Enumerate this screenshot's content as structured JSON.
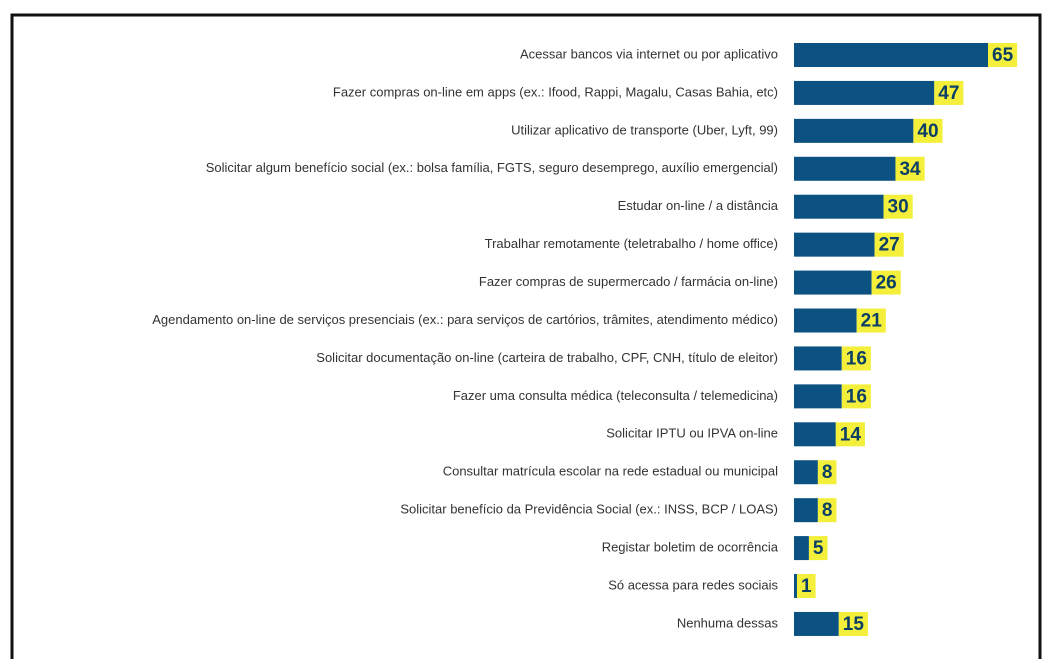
{
  "chart_data": {
    "type": "bar",
    "orientation": "horizontal",
    "color": "#0b5282",
    "categories": [
      "Acessar bancos via internet ou por aplicativo",
      "Fazer compras on-line em apps (ex.: Ifood, Rappi, Magalu, Casas Bahia, etc)",
      "Utilizar aplicativo de transporte (Uber, Lyft, 99)",
      "Solicitar algum benefício social (ex.: bolsa família, FGTS, seguro desemprego, auxílio emergencial)",
      "Estudar on-line / a distância",
      "Trabalhar remotamente (teletrabalho / home office)",
      "Fazer compras de supermercado / farmácia on-line)",
      "Agendamento on-line de serviços presenciais (ex.: para serviços de cartórios, trâmites, atendimento médico)",
      "Solicitar documentação on-line (carteira de trabalho, CPF, CNH, título de eleitor)",
      "Fazer uma consulta médica (teleconsulta / telemedicina)",
      "Solicitar IPTU ou IPVA on-line",
      "Consultar matrícula escolar na rede estadual ou municipal",
      "Solicitar benefício da Previdência Social (ex.: INSS, BCP / LOAS)",
      "Registar boletim de ocorrência",
      "Só acessa para redes sociais",
      "Nenhuma dessas"
    ],
    "values": [
      65,
      47,
      40,
      34,
      30,
      27,
      26,
      21,
      16,
      16,
      14,
      8,
      8,
      5,
      1,
      15
    ]
  }
}
